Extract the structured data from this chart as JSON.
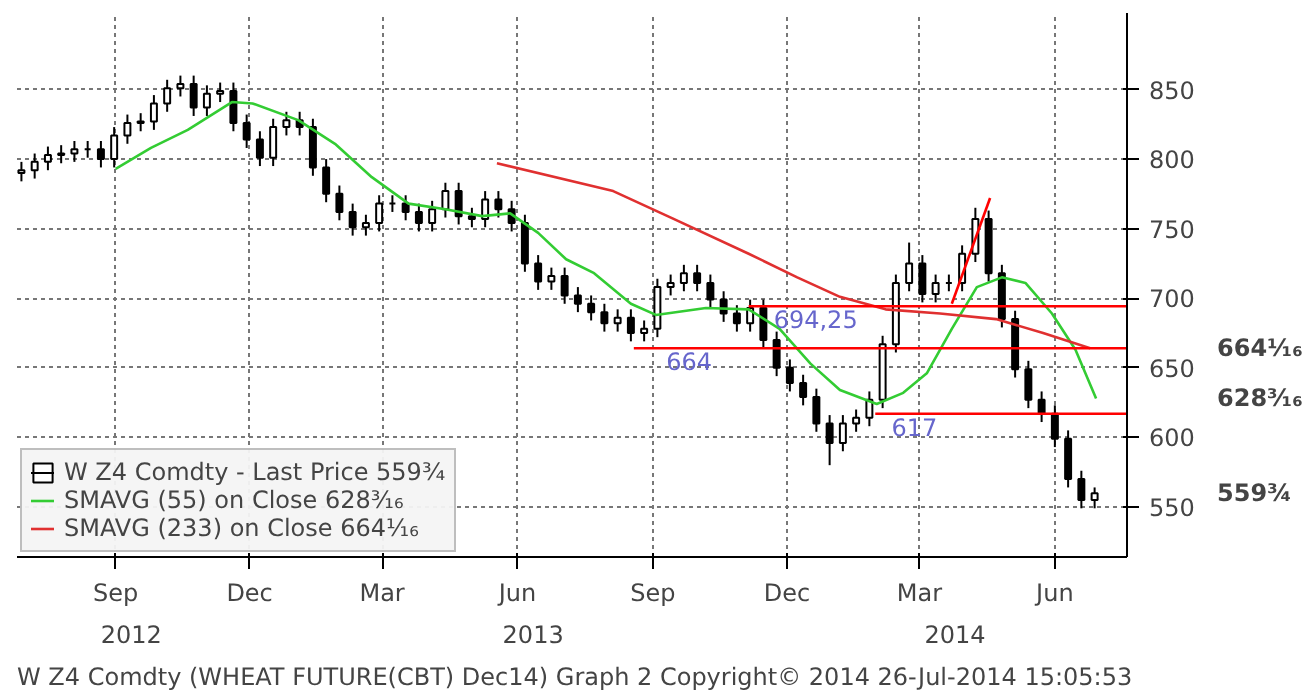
{
  "chart_data": {
    "type": "candlestick",
    "xlim": [
      "2012-06-26",
      "2014-07-20"
    ],
    "ylim": [
      514,
      905
    ],
    "xticks": [
      {
        "value": "2012-09-01",
        "label": "Sep"
      },
      {
        "value": "2012-12-01",
        "label": "Dec"
      },
      {
        "value": "2013-03-01",
        "label": "Mar"
      },
      {
        "value": "2013-06-01",
        "label": "Jun"
      },
      {
        "value": "2013-09-01",
        "label": "Sep"
      },
      {
        "value": "2013-12-01",
        "label": "Dec"
      },
      {
        "value": "2014-03-01",
        "label": "Mar"
      },
      {
        "value": "2014-06-01",
        "label": "Jun"
      }
    ],
    "yticks": [
      550,
      600,
      650,
      700,
      750,
      800,
      850
    ],
    "grid": true,
    "legend": "bottom left",
    "series": [
      {
        "name": "W Z4 Comdty - Last Price 559¾",
        "color": "#000000",
        "x": [
          "2012-06-29",
          "2012-07-08",
          "2012-07-17",
          "2012-07-26",
          "2012-08-04",
          "2012-08-13",
          "2012-08-22",
          "2012-08-31",
          "2012-09-09",
          "2012-09-18",
          "2012-09-27",
          "2012-10-06",
          "2012-10-15",
          "2012-10-24",
          "2012-11-02",
          "2012-11-11",
          "2012-11-20",
          "2012-11-29",
          "2012-12-08",
          "2012-12-17",
          "2012-12-26",
          "2013-01-04",
          "2013-01-13",
          "2013-01-22",
          "2013-01-31",
          "2013-02-09",
          "2013-02-18",
          "2013-02-27",
          "2013-03-08",
          "2013-03-17",
          "2013-03-26",
          "2013-04-04",
          "2013-04-13",
          "2013-04-22",
          "2013-05-01",
          "2013-05-10",
          "2013-05-19",
          "2013-05-28",
          "2013-06-06",
          "2013-06-15",
          "2013-06-24",
          "2013-07-03",
          "2013-07-12",
          "2013-07-21",
          "2013-07-30",
          "2013-08-08",
          "2013-08-17",
          "2013-08-26",
          "2013-09-04",
          "2013-09-13",
          "2013-09-22",
          "2013-10-01",
          "2013-10-10",
          "2013-10-19",
          "2013-10-28",
          "2013-11-06",
          "2013-11-15",
          "2013-11-24",
          "2013-12-03",
          "2013-12-12",
          "2013-12-21",
          "2013-12-30",
          "2014-01-08",
          "2014-01-17",
          "2014-01-26",
          "2014-02-04",
          "2014-02-13",
          "2014-02-22",
          "2014-03-03",
          "2014-03-12",
          "2014-03-21",
          "2014-03-30",
          "2014-04-08",
          "2014-04-17",
          "2014-04-26",
          "2014-05-05",
          "2014-05-14",
          "2014-05-23",
          "2014-06-01",
          "2014-06-10",
          "2014-06-19",
          "2014-06-28"
        ],
        "ohlc": [
          [
            790,
            798,
            784,
            792
          ],
          [
            792,
            804,
            786,
            798
          ],
          [
            798,
            809,
            792,
            803
          ],
          [
            803,
            810,
            797,
            804
          ],
          [
            804,
            813,
            798,
            807
          ],
          [
            807,
            813,
            801,
            807
          ],
          [
            807,
            813,
            794,
            800
          ],
          [
            800,
            823,
            794,
            817
          ],
          [
            817,
            832,
            811,
            826
          ],
          [
            826,
            833,
            820,
            827
          ],
          [
            827,
            846,
            821,
            840
          ],
          [
            840,
            857,
            834,
            851
          ],
          [
            851,
            860,
            845,
            854
          ],
          [
            854,
            860,
            831,
            837
          ],
          [
            837,
            853,
            831,
            847
          ],
          [
            847,
            855,
            841,
            849
          ],
          [
            849,
            855,
            820,
            826
          ],
          [
            826,
            832,
            808,
            814
          ],
          [
            814,
            820,
            795,
            801
          ],
          [
            801,
            829,
            795,
            823
          ],
          [
            823,
            834,
            817,
            828
          ],
          [
            828,
            834,
            817,
            823
          ],
          [
            823,
            829,
            788,
            794
          ],
          [
            794,
            800,
            769,
            775
          ],
          [
            775,
            781,
            756,
            762
          ],
          [
            762,
            768,
            745,
            751
          ],
          [
            751,
            760,
            745,
            754
          ],
          [
            754,
            774,
            748,
            768
          ],
          [
            768,
            774,
            762,
            768
          ],
          [
            768,
            774,
            756,
            762
          ],
          [
            762,
            768,
            748,
            754
          ],
          [
            754,
            770,
            748,
            764
          ],
          [
            764,
            783,
            758,
            777
          ],
          [
            777,
            783,
            753,
            759
          ],
          [
            759,
            765,
            751,
            757
          ],
          [
            757,
            777,
            751,
            771
          ],
          [
            771,
            777,
            758,
            764
          ],
          [
            764,
            770,
            748,
            754
          ],
          [
            754,
            760,
            719,
            725
          ],
          [
            725,
            731,
            706,
            712
          ],
          [
            712,
            722,
            706,
            716
          ],
          [
            716,
            722,
            696,
            702
          ],
          [
            702,
            708,
            690,
            696
          ],
          [
            696,
            702,
            684,
            690
          ],
          [
            690,
            696,
            676,
            682
          ],
          [
            682,
            692,
            676,
            686
          ],
          [
            686,
            692,
            669,
            675
          ],
          [
            675,
            684,
            669,
            678
          ],
          [
            678,
            714,
            672,
            708
          ],
          [
            708,
            717,
            702,
            711
          ],
          [
            711,
            724,
            705,
            718
          ],
          [
            718,
            724,
            705,
            711
          ],
          [
            711,
            717,
            693,
            699
          ],
          [
            699,
            705,
            683,
            689
          ],
          [
            689,
            695,
            676,
            682
          ],
          [
            682,
            699,
            676,
            693
          ],
          [
            693,
            699,
            664,
            670
          ],
          [
            670,
            676,
            644,
            650
          ],
          [
            650,
            656,
            633,
            639
          ],
          [
            639,
            645,
            623,
            629
          ],
          [
            629,
            635,
            604,
            610
          ],
          [
            610,
            616,
            580,
            596
          ],
          [
            596,
            616,
            590,
            610
          ],
          [
            610,
            620,
            604,
            614
          ],
          [
            614,
            633,
            608,
            627
          ],
          [
            627,
            673,
            621,
            667
          ],
          [
            667,
            717,
            661,
            711
          ],
          [
            711,
            740,
            705,
            725
          ],
          [
            725,
            731,
            697,
            703
          ],
          [
            703,
            717,
            697,
            711
          ],
          [
            711,
            717,
            705,
            711
          ],
          [
            711,
            738,
            705,
            732
          ],
          [
            732,
            765,
            726,
            757
          ],
          [
            757,
            763,
            712,
            718
          ],
          [
            718,
            724,
            679,
            685
          ],
          [
            685,
            691,
            643,
            649
          ],
          [
            649,
            655,
            621,
            627
          ],
          [
            627,
            633,
            611,
            617
          ],
          [
            617,
            623,
            593,
            599
          ],
          [
            599,
            605,
            564,
            570
          ],
          [
            570,
            576,
            549,
            555
          ],
          [
            555,
            564,
            549,
            559.75
          ]
        ]
      },
      {
        "name": "SMAVG (55) on Close 628³⁄₁₆",
        "type": "line",
        "color": "#33cc33",
        "x": [
          "2012-09-01",
          "2012-09-25",
          "2012-10-20",
          "2012-11-19",
          "2012-12-03",
          "2013-01-03",
          "2013-01-28",
          "2013-02-22",
          "2013-03-19",
          "2013-04-13",
          "2013-05-08",
          "2013-05-27",
          "2013-06-15",
          "2013-07-04",
          "2013-07-23",
          "2013-08-17",
          "2013-09-03",
          "2013-10-07",
          "2013-11-05",
          "2013-11-26",
          "2013-12-17",
          "2014-01-06",
          "2014-01-31",
          "2014-02-18",
          "2014-03-06",
          "2014-03-23",
          "2014-04-09",
          "2014-04-26",
          "2014-05-12",
          "2014-05-30",
          "2014-06-15",
          "2014-06-29"
        ],
        "values": [
          793,
          808,
          821,
          841,
          840,
          828,
          811,
          787,
          768,
          764,
          759,
          761,
          747,
          728,
          718,
          696,
          688,
          693,
          692,
          678,
          653,
          634,
          624,
          632,
          646,
          678,
          708,
          715,
          711,
          689,
          663,
          628
        ]
      },
      {
        "name": "SMAVG (233) on Close 664¹⁄₁₆",
        "type": "line",
        "color": "#e03030",
        "x": [
          "2013-05-18",
          "2013-08-05",
          "2013-09-15",
          "2013-11-05",
          "2013-12-08",
          "2014-01-06",
          "2014-02-06",
          "2014-03-15",
          "2014-04-22",
          "2014-05-24",
          "2014-06-25"
        ],
        "values": [
          797,
          777,
          757,
          732,
          715,
          701,
          692,
          689,
          685,
          675,
          664
        ]
      },
      {
        "type": "line",
        "color": "#ff0000",
        "x": [
          "2014-03-23",
          "2014-04-18"
        ],
        "values": [
          696,
          772
        ]
      },
      {
        "type": "line",
        "color": "#ff0000",
        "x": [
          "2013-11-05",
          "2014-07-20"
        ],
        "values": [
          694.25,
          694.25
        ]
      },
      {
        "type": "line",
        "color": "#ff0000",
        "x": [
          "2013-08-19",
          "2014-07-20"
        ],
        "values": [
          664,
          664
        ]
      },
      {
        "type": "line",
        "color": "#ff0000",
        "x": [
          "2014-01-30",
          "2014-07-20"
        ],
        "values": [
          617,
          617
        ]
      }
    ],
    "annotations": [
      "2012",
      "2013",
      "2014",
      {
        "text": "694,25",
        "x": "2013-11-22",
        "y": 694.25
      },
      {
        "text": "664",
        "x": "2013-09-10",
        "y": 664
      },
      {
        "text": "617",
        "x": "2014-02-10",
        "y": 617
      },
      "559¾",
      "628³⁄₁₆",
      "664¹⁄₁₆",
      "W Z4 Comdty (WHEAT FUTURE(CBT) Dec14) Graph 2  Copyright© 2014  26-Jul-2014 15:05:53"
    ]
  }
}
